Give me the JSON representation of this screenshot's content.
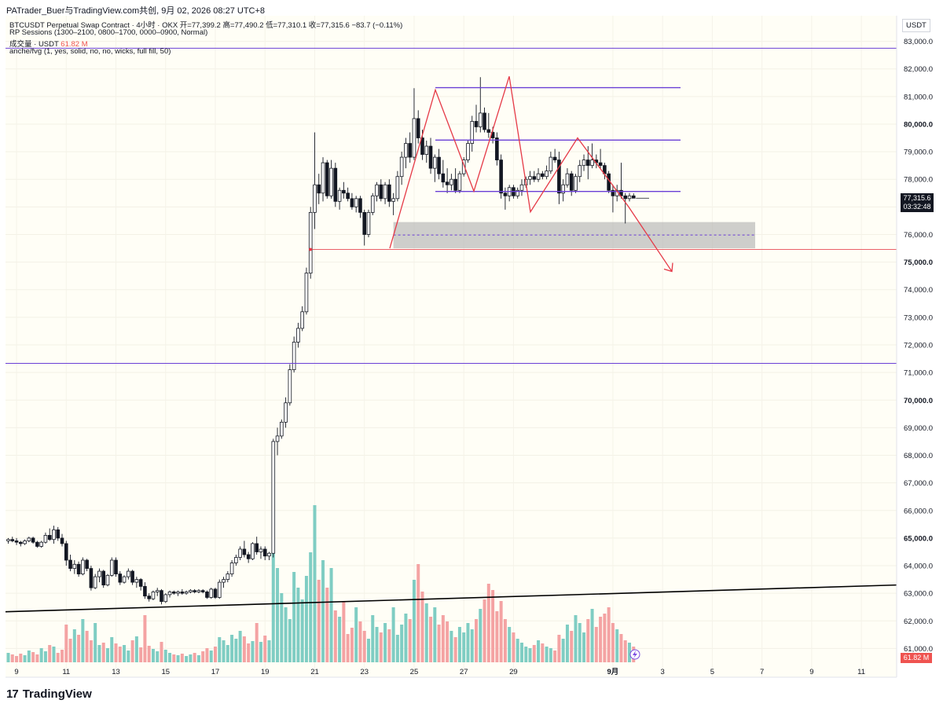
{
  "header": {
    "title": "PATrader_Buer与TradingView.com共创, 9月 02, 2026 08:27 UTC+8"
  },
  "legend": {
    "symbol_line": "BTCUSDT Perpetual Swap Contract · 4小时 · OKX  开=77,399.2  高=77,490.2  低=77,310.1  收=77,315.6  −83.7 (−0.11%)",
    "sessions": "RP Sessions (1300–2100, 0800–1700, 0000–0900, Normal)",
    "volume_label": "成交量 · USDT",
    "volume_value": "61.82 M",
    "fvg": "anche/fvg (1, yes, solid, no, no, wicks, full fill, 50)"
  },
  "axis": {
    "currency": "USDT",
    "last_price": "77,315.6",
    "countdown": "03:32:48",
    "volume_tag": "61.82 M"
  },
  "brand": {
    "name": "TradingView",
    "mark": "17"
  },
  "colors": {
    "up": "#26a69a",
    "down": "#131722",
    "up_body": "#ffffff",
    "vol_up": "#7fcdc3",
    "vol_down": "#f4a3a3",
    "purple": "#6a3fd6",
    "red": "#e53946",
    "grey_zone": "#b4b4b4",
    "bg": "#fffef6"
  },
  "chart_data": {
    "type": "candlestick",
    "ylim": [
      60500,
      83500
    ],
    "yticks": [
      61000,
      62000,
      63000,
      64000,
      65000,
      66000,
      67000,
      68000,
      69000,
      70000,
      71000,
      72000,
      73000,
      74000,
      75000,
      76000,
      77000,
      78000,
      79000,
      80000,
      81000,
      82000,
      83000
    ],
    "bold_ticks": [
      65000,
      70000,
      75000,
      80000
    ],
    "xticks": [
      {
        "label": "9",
        "bar": 2
      },
      {
        "label": "11",
        "bar": 14
      },
      {
        "label": "13",
        "bar": 26
      },
      {
        "label": "15",
        "bar": 38
      },
      {
        "label": "17",
        "bar": 50
      },
      {
        "label": "19",
        "bar": 62
      },
      {
        "label": "21",
        "bar": 74
      },
      {
        "label": "23",
        "bar": 86
      },
      {
        "label": "25",
        "bar": 98
      },
      {
        "label": "27",
        "bar": 110
      },
      {
        "label": "29",
        "bar": 122
      },
      {
        "label": "9月",
        "bar": 146
      },
      {
        "label": "3",
        "bar": 158
      },
      {
        "label": "5",
        "bar": 170
      },
      {
        "label": "7",
        "bar": 182
      },
      {
        "label": "9",
        "bar": 194
      },
      {
        "label": "11",
        "bar": 206
      }
    ],
    "candles": [
      [
        64900,
        65000,
        64800,
        64950
      ],
      [
        64950,
        65050,
        64850,
        64900
      ],
      [
        64900,
        65000,
        64750,
        64850
      ],
      [
        64850,
        64900,
        64700,
        64800
      ],
      [
        64800,
        64950,
        64750,
        64900
      ],
      [
        64900,
        65050,
        64850,
        65000
      ],
      [
        65000,
        65050,
        64800,
        64850
      ],
      [
        64850,
        64900,
        64650,
        64700
      ],
      [
        64700,
        64900,
        64650,
        64850
      ],
      [
        64850,
        65200,
        64800,
        65100
      ],
      [
        65100,
        65350,
        64900,
        64950
      ],
      [
        64950,
        65450,
        64800,
        65300
      ],
      [
        65300,
        65400,
        64900,
        65000
      ],
      [
        65000,
        65150,
        64700,
        64800
      ],
      [
        64800,
        64900,
        64000,
        64200
      ],
      [
        64200,
        64400,
        63800,
        63900
      ],
      [
        63900,
        64200,
        63700,
        64050
      ],
      [
        64050,
        64150,
        63600,
        63700
      ],
      [
        63700,
        64300,
        63650,
        64200
      ],
      [
        64200,
        64250,
        63800,
        63900
      ],
      [
        63900,
        64000,
        63100,
        63200
      ],
      [
        63200,
        63700,
        63150,
        63600
      ],
      [
        63600,
        63900,
        63400,
        63800
      ],
      [
        63800,
        63850,
        63200,
        63300
      ],
      [
        63300,
        63700,
        63250,
        63650
      ],
      [
        63650,
        64300,
        63600,
        64200
      ],
      [
        64200,
        64300,
        63600,
        63700
      ],
      [
        63700,
        63800,
        63300,
        63400
      ],
      [
        63400,
        63650,
        63350,
        63600
      ],
      [
        63600,
        63900,
        63500,
        63800
      ],
      [
        63800,
        63850,
        63300,
        63400
      ],
      [
        63400,
        63600,
        63200,
        63500
      ],
      [
        63500,
        63550,
        63100,
        63250
      ],
      [
        63250,
        63400,
        62800,
        62900
      ],
      [
        62900,
        63000,
        62700,
        62800
      ],
      [
        62800,
        63100,
        62750,
        63050
      ],
      [
        63050,
        63200,
        62900,
        63100
      ],
      [
        63100,
        63150,
        62600,
        62700
      ],
      [
        62700,
        63000,
        62650,
        62950
      ],
      [
        62950,
        63100,
        62850,
        63050
      ],
      [
        63050,
        63100,
        62950,
        63000
      ],
      [
        63000,
        63100,
        62900,
        63050
      ],
      [
        63050,
        63150,
        62950,
        63000
      ],
      [
        63000,
        63100,
        62950,
        63050
      ],
      [
        63050,
        63150,
        63000,
        63100
      ],
      [
        63100,
        63150,
        63000,
        63050
      ],
      [
        63050,
        63150,
        63000,
        63100
      ],
      [
        63100,
        63150,
        63000,
        63050
      ],
      [
        63050,
        63100,
        62800,
        62850
      ],
      [
        62850,
        63200,
        62800,
        63150
      ],
      [
        63150,
        63200,
        62800,
        62850
      ],
      [
        62850,
        63500,
        62800,
        63400
      ],
      [
        63400,
        63600,
        63200,
        63500
      ],
      [
        63500,
        63800,
        63400,
        63700
      ],
      [
        63700,
        64200,
        63600,
        64100
      ],
      [
        64100,
        64400,
        64000,
        64300
      ],
      [
        64300,
        64700,
        64200,
        64600
      ],
      [
        64600,
        64900,
        64300,
        64400
      ],
      [
        64400,
        64500,
        64100,
        64250
      ],
      [
        64250,
        64850,
        64200,
        64800
      ],
      [
        64800,
        65050,
        64400,
        64500
      ],
      [
        64500,
        64700,
        64250,
        64600
      ],
      [
        64600,
        64700,
        64200,
        64350
      ],
      [
        64350,
        64500,
        64200,
        64450
      ],
      [
        64450,
        68600,
        64300,
        68500
      ],
      [
        68500,
        69000,
        68000,
        68700
      ],
      [
        68700,
        69300,
        68600,
        69200
      ],
      [
        69200,
        70100,
        69000,
        69900
      ],
      [
        69900,
        71300,
        69800,
        71100
      ],
      [
        71100,
        72300,
        71000,
        72100
      ],
      [
        72100,
        72800,
        71900,
        72600
      ],
      [
        72600,
        73400,
        72500,
        73200
      ],
      [
        73200,
        74800,
        73100,
        74600
      ],
      [
        74600,
        77000,
        74400,
        76800
      ],
      [
        76800,
        79700,
        76200,
        77800
      ],
      [
        77800,
        78200,
        77100,
        77500
      ],
      [
        77500,
        78800,
        77200,
        78600
      ],
      [
        78600,
        78700,
        77300,
        77400
      ],
      [
        77400,
        78700,
        77300,
        78400
      ],
      [
        78400,
        78600,
        77000,
        77200
      ],
      [
        77200,
        77700,
        76900,
        77600
      ],
      [
        77600,
        77900,
        77300,
        77500
      ],
      [
        77500,
        77700,
        77200,
        77300
      ],
      [
        77300,
        77500,
        76900,
        77000
      ],
      [
        77000,
        77400,
        76800,
        77300
      ],
      [
        77300,
        77400,
        76600,
        76800
      ],
      [
        76800,
        76900,
        75600,
        76000
      ],
      [
        76000,
        76900,
        75900,
        76800
      ],
      [
        76800,
        77500,
        76700,
        77400
      ],
      [
        77400,
        77900,
        77200,
        77800
      ],
      [
        77800,
        78000,
        77200,
        77300
      ],
      [
        77300,
        77900,
        77100,
        77800
      ],
      [
        77800,
        78000,
        77000,
        77200
      ],
      [
        77200,
        77500,
        76700,
        77300
      ],
      [
        77300,
        78300,
        77200,
        78100
      ],
      [
        78100,
        79000,
        77800,
        78800
      ],
      [
        78800,
        79500,
        78400,
        79300
      ],
      [
        79300,
        79700,
        78600,
        78800
      ],
      [
        78800,
        81300,
        78700,
        80200
      ],
      [
        80200,
        80500,
        79300,
        79500
      ],
      [
        79500,
        79800,
        78700,
        78900
      ],
      [
        78900,
        79400,
        78600,
        79200
      ],
      [
        79200,
        79500,
        78200,
        78400
      ],
      [
        78400,
        78900,
        77900,
        78800
      ],
      [
        78800,
        79100,
        78000,
        78200
      ],
      [
        78200,
        78700,
        77700,
        77900
      ],
      [
        77900,
        78400,
        77500,
        77800
      ],
      [
        77800,
        78200,
        77600,
        78000
      ],
      [
        78000,
        78400,
        77500,
        77600
      ],
      [
        77600,
        78300,
        77500,
        78200
      ],
      [
        78200,
        78800,
        78100,
        78700
      ],
      [
        78700,
        79400,
        78600,
        79300
      ],
      [
        79300,
        80300,
        79000,
        80100
      ],
      [
        80100,
        80700,
        79700,
        79900
      ],
      [
        79900,
        81700,
        79700,
        80400
      ],
      [
        80400,
        80600,
        79700,
        79800
      ],
      [
        79800,
        80400,
        79500,
        79700
      ],
      [
        79700,
        79900,
        79300,
        79500
      ],
      [
        79500,
        79700,
        78500,
        78700
      ],
      [
        78700,
        78900,
        77300,
        77500
      ],
      [
        77500,
        77700,
        76900,
        77400
      ],
      [
        77400,
        77800,
        77200,
        77700
      ],
      [
        77700,
        77800,
        77300,
        77400
      ],
      [
        77400,
        77700,
        77300,
        77600
      ],
      [
        77600,
        78000,
        77400,
        77800
      ],
      [
        77800,
        78100,
        77700,
        78000
      ],
      [
        78000,
        78300,
        77800,
        78100
      ],
      [
        78100,
        78300,
        77900,
        78000
      ],
      [
        78000,
        78400,
        77900,
        78200
      ],
      [
        78200,
        78300,
        78000,
        78100
      ],
      [
        78100,
        78500,
        78000,
        78300
      ],
      [
        78300,
        79000,
        78200,
        78800
      ],
      [
        78800,
        79100,
        78600,
        78700
      ],
      [
        78700,
        79000,
        77100,
        77500
      ],
      [
        77500,
        78000,
        77200,
        77800
      ],
      [
        77800,
        78400,
        77700,
        78200
      ],
      [
        78200,
        78300,
        77400,
        77600
      ],
      [
        77600,
        78200,
        77500,
        78100
      ],
      [
        78100,
        78700,
        77900,
        78500
      ],
      [
        78500,
        78900,
        78300,
        78700
      ],
      [
        78700,
        79200,
        78000,
        78500
      ],
      [
        78500,
        79300,
        78400,
        78700
      ],
      [
        78700,
        78900,
        78400,
        78600
      ],
      [
        78600,
        79100,
        78400,
        78500
      ],
      [
        78500,
        78600,
        78000,
        78200
      ],
      [
        78200,
        78300,
        77500,
        77600
      ],
      [
        77600,
        77800,
        76800,
        77400
      ],
      [
        77400,
        77800,
        77200,
        77600
      ],
      [
        77600,
        78600,
        77300,
        77400
      ],
      [
        77400,
        77500,
        76400,
        77300
      ],
      [
        77300,
        77500,
        77200,
        77400
      ],
      [
        77400,
        77490,
        77310,
        77316
      ]
    ],
    "volumes": [
      0.12,
      0.1,
      0.08,
      0.11,
      0.09,
      0.15,
      0.13,
      0.1,
      0.18,
      0.14,
      0.22,
      0.2,
      0.12,
      0.16,
      0.48,
      0.3,
      0.42,
      0.35,
      0.55,
      0.4,
      0.28,
      0.5,
      0.22,
      0.25,
      0.18,
      0.32,
      0.24,
      0.2,
      0.22,
      0.15,
      0.28,
      0.33,
      0.19,
      0.6,
      0.21,
      0.17,
      0.14,
      0.26,
      0.16,
      0.12,
      0.1,
      0.09,
      0.11,
      0.08,
      0.1,
      0.12,
      0.09,
      0.14,
      0.18,
      0.15,
      0.2,
      0.32,
      0.28,
      0.22,
      0.35,
      0.3,
      0.4,
      0.33,
      0.24,
      0.27,
      0.5,
      0.26,
      0.34,
      0.28,
      1.8,
      1.2,
      0.88,
      0.7,
      0.55,
      1.15,
      0.95,
      0.8,
      1.1,
      1.4,
      2.0,
      1.05,
      1.3,
      0.95,
      1.2,
      0.66,
      0.58,
      0.78,
      0.36,
      0.44,
      0.7,
      0.52,
      0.4,
      0.3,
      0.6,
      0.45,
      0.38,
      0.5,
      0.42,
      0.7,
      0.35,
      0.48,
      0.62,
      0.55,
      1.05,
      1.25,
      0.9,
      0.75,
      0.58,
      0.7,
      0.48,
      0.6,
      0.52,
      0.4,
      0.32,
      0.45,
      0.38,
      0.5,
      0.42,
      0.55,
      0.68,
      0.8,
      1.0,
      0.92,
      0.65,
      0.78,
      0.55,
      0.45,
      0.38,
      0.3,
      0.25,
      0.2,
      0.18,
      0.22,
      0.28,
      0.24,
      0.2,
      0.18,
      0.15,
      0.35,
      0.3,
      0.48,
      0.4,
      0.6,
      0.5,
      0.38,
      0.55,
      0.68,
      0.45,
      0.58,
      0.62,
      0.7,
      0.5,
      0.42,
      0.36,
      0.28,
      0.25,
      0.2,
      0.16
    ]
  }
}
